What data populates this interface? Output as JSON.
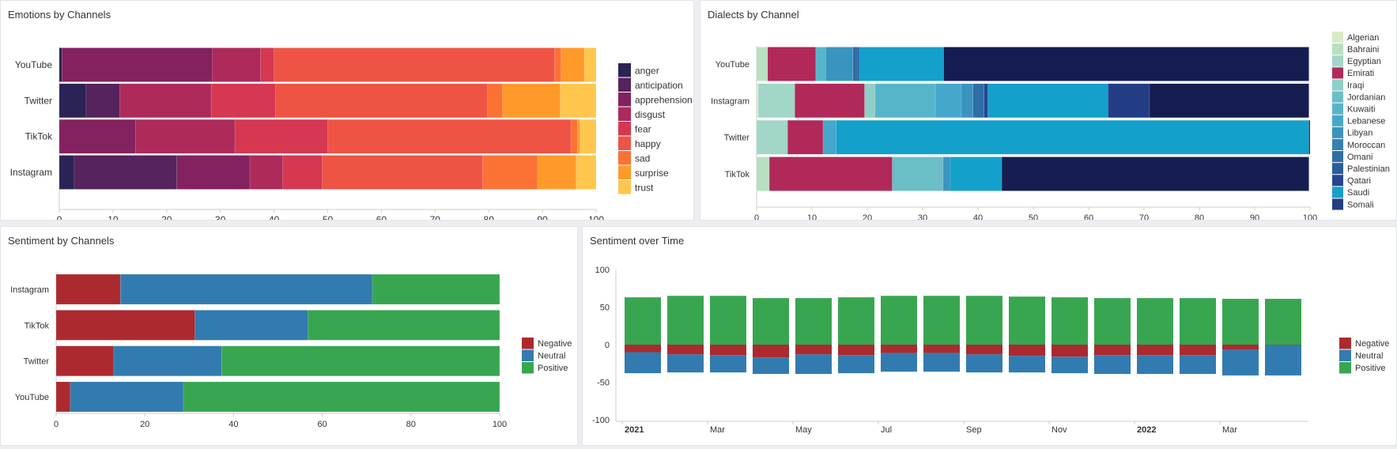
{
  "charts": [
    {
      "type": "bar",
      "orientation": "horizontal",
      "stacked": true,
      "title": "Emotions by Channels",
      "categories": [
        "YouTube",
        "Twitter",
        "TikTok",
        "Instagram"
      ],
      "xlim": [
        0,
        100
      ],
      "xticks": [
        0,
        10,
        20,
        30,
        40,
        50,
        60,
        70,
        80,
        90,
        100
      ],
      "legend_position": "right",
      "series": [
        {
          "name": "anger",
          "color": "#2b2255",
          "values": [
            0.5,
            5,
            0,
            2.8
          ]
        },
        {
          "name": "anticipation",
          "color": "#55235d",
          "values": [
            0,
            6.3,
            0,
            19.1
          ]
        },
        {
          "name": "apprehension",
          "color": "#83225f",
          "values": [
            28,
            0,
            14.2,
            13.6
          ]
        },
        {
          "name": "disgust",
          "color": "#ad2a5a",
          "values": [
            9,
            17,
            18.5,
            6.1
          ]
        },
        {
          "name": "fear",
          "color": "#d63751",
          "values": [
            2.5,
            12,
            17.3,
            7.4
          ]
        },
        {
          "name": "happy",
          "color": "#ef5344",
          "values": [
            52.3,
            39.5,
            45.3,
            29.9
          ]
        },
        {
          "name": "sad",
          "color": "#fc7235",
          "values": [
            1.2,
            2.8,
            1.2,
            10.2
          ]
        },
        {
          "name": "surprise",
          "color": "#ff9a2a",
          "values": [
            4.3,
            10.7,
            0.5,
            7.2
          ]
        },
        {
          "name": "trust",
          "color": "#ffc64d",
          "values": [
            2.2,
            6.7,
            3,
            3.7
          ]
        }
      ]
    },
    {
      "type": "bar",
      "orientation": "horizontal",
      "stacked": true,
      "title": "Dialects by Channel",
      "categories": [
        "YouTube",
        "Instagram",
        "Twitter",
        "TikTok"
      ],
      "xlim": [
        0,
        100
      ],
      "xticks": [
        0,
        10,
        20,
        30,
        40,
        50,
        60,
        70,
        80,
        90,
        100
      ],
      "legend_position": "right",
      "series": [
        {
          "name": "Algerian",
          "color": "#d7eac4",
          "values": [
            0,
            0.3,
            0,
            0
          ]
        },
        {
          "name": "Bahraini",
          "color": "#b7dfc0",
          "values": [
            2,
            0,
            0,
            2.3
          ]
        },
        {
          "name": "Egyptian",
          "color": "#a1d6c8",
          "values": [
            0,
            6.6,
            5.6,
            0
          ]
        },
        {
          "name": "Emirati",
          "color": "#b0295a",
          "values": [
            8.7,
            12.6,
            6.4,
            22.2
          ]
        },
        {
          "name": "Iraqi",
          "color": "#8fcfc8",
          "values": [
            0,
            1.9,
            0,
            0
          ]
        },
        {
          "name": "Jordanian",
          "color": "#6cbec7",
          "values": [
            0,
            0,
            0,
            9.2
          ]
        },
        {
          "name": "Kuwaiti",
          "color": "#57b5ca",
          "values": [
            1.8,
            10.9,
            0,
            0
          ]
        },
        {
          "name": "Lebanese",
          "color": "#44a7cb",
          "values": [
            0,
            4.7,
            2.4,
            0
          ]
        },
        {
          "name": "Libyan",
          "color": "#3a94c0",
          "values": [
            4.9,
            2.1,
            0,
            1.3
          ]
        },
        {
          "name": "Moroccan",
          "color": "#3580b1",
          "values": [
            0,
            0,
            0,
            0
          ]
        },
        {
          "name": "Omani",
          "color": "#2f6ea6",
          "values": [
            0.8,
            2,
            0,
            0
          ]
        },
        {
          "name": "Palestinian",
          "color": "#2b5c9b",
          "values": [
            0,
            0,
            0,
            0
          ]
        },
        {
          "name": "Qatari",
          "color": "#25468f",
          "values": [
            0.3,
            0.7,
            0,
            0
          ]
        },
        {
          "name": "Saudi",
          "color": "#13a0cb",
          "values": [
            15.3,
            21.7,
            85.4,
            9.3
          ]
        },
        {
          "name": "Somali",
          "color": "#233d85",
          "values": [
            0,
            7.5,
            0,
            0
          ]
        },
        {
          "color": "#161d50",
          "values": [
            66,
            28.8,
            0.2,
            55.5
          ]
        }
      ]
    },
    {
      "type": "bar",
      "orientation": "horizontal",
      "stacked": true,
      "title": "Sentiment by Channels",
      "categories": [
        "Instagram",
        "TikTok",
        "Twitter",
        "YouTube"
      ],
      "xlim": [
        0,
        100
      ],
      "xticks": [
        0,
        20,
        40,
        60,
        80,
        100
      ],
      "legend_position": "right",
      "series": [
        {
          "name": "Negative",
          "color": "#ac2a2f",
          "values": [
            14.5,
            31.3,
            13,
            3.2
          ]
        },
        {
          "name": "Neutral",
          "color": "#327bb0",
          "values": [
            56.8,
            25.5,
            24.3,
            25.5
          ]
        },
        {
          "name": "Positive",
          "color": "#38a650",
          "values": [
            28.7,
            43.2,
            62.7,
            71.3
          ]
        }
      ]
    },
    {
      "type": "bar",
      "orientation": "vertical",
      "stacked": true,
      "title": "Sentiment over Time",
      "x": [
        "2021-01",
        "2021-02",
        "2021-03",
        "2021-04",
        "2021-05",
        "2021-06",
        "2021-07",
        "2021-08",
        "2021-09",
        "2021-10",
        "2021-11",
        "2021-12",
        "2022-01",
        "2022-02",
        "2022-03",
        "2022-04"
      ],
      "xtick_labels": [
        {
          "month": "2021-01",
          "label": "2021",
          "bold": true
        },
        {
          "month": "2021-03",
          "label": "Mar"
        },
        {
          "month": "2021-05",
          "label": "May"
        },
        {
          "month": "2021-07",
          "label": "Jul"
        },
        {
          "month": "2021-09",
          "label": "Sep"
        },
        {
          "month": "2021-11",
          "label": "Nov"
        },
        {
          "month": "2022-01",
          "label": "2022",
          "bold": true
        },
        {
          "month": "2022-03",
          "label": "Mar"
        }
      ],
      "ylim": [
        -100,
        100
      ],
      "yticks": [
        -100,
        -50,
        0,
        50,
        100
      ],
      "legend_position": "right",
      "series": [
        {
          "name": "Negative",
          "color": "#ac2a2f",
          "values": [
            -10,
            -13,
            -14,
            -17,
            -13,
            -14,
            -11,
            -11,
            -13,
            -15,
            -16,
            -14,
            -14,
            -14,
            -7,
            -0.5
          ]
        },
        {
          "name": "Neutral",
          "color": "#327bb0",
          "values": [
            -28,
            -24,
            -23,
            -22,
            -26,
            -24,
            -25,
            -25,
            -24,
            -22,
            -22,
            -25,
            -25,
            -25,
            -34,
            -40.5
          ]
        },
        {
          "name": "Positive",
          "color": "#38a650",
          "values": [
            63,
            65,
            65,
            62,
            62,
            63,
            65,
            65,
            65,
            64,
            63,
            62,
            62,
            62,
            61,
            61
          ]
        }
      ]
    }
  ]
}
